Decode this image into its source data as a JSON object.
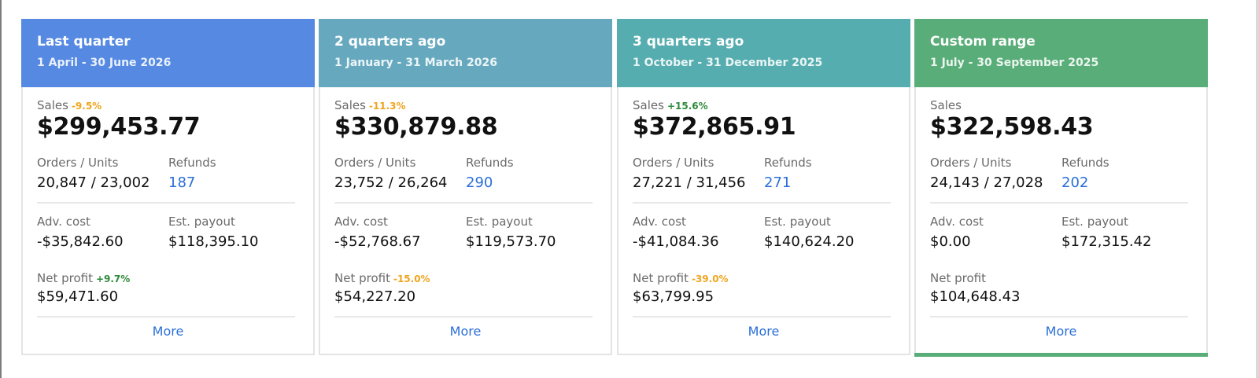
{
  "cards": [
    {
      "title": "Last quarter",
      "range": "1 April - 30 June 2026",
      "header_color": "#5589e2",
      "sales_label": "Sales",
      "sales_delta": "-9.5%",
      "sales_delta_color": "#efa51d",
      "sales_value": "$299,453.77",
      "orders_label": "Orders / Units",
      "orders_value": "20,847 / 23,002",
      "refunds_label": "Refunds",
      "refunds_value": "187",
      "adv_label": "Adv. cost",
      "adv_value": "-$35,842.60",
      "payout_label": "Est. payout",
      "payout_value": "$118,395.10",
      "net_label": "Net profit",
      "net_delta": "+9.7%",
      "net_delta_color": "#2e8a3a",
      "net_value": "$59,471.60",
      "more_label": "More"
    },
    {
      "title": "2 quarters ago",
      "range": "1 January - 31 March 2026",
      "header_color": "#66a9bf",
      "sales_label": "Sales",
      "sales_delta": "-11.3%",
      "sales_delta_color": "#efa51d",
      "sales_value": "$330,879.88",
      "orders_label": "Orders / Units",
      "orders_value": "23,752 / 26,264",
      "refunds_label": "Refunds",
      "refunds_value": "290",
      "adv_label": "Adv. cost",
      "adv_value": "-$52,768.67",
      "payout_label": "Est. payout",
      "payout_value": "$119,573.70",
      "net_label": "Net profit",
      "net_delta": "-15.0%",
      "net_delta_color": "#efa51d",
      "net_value": "$54,227.20",
      "more_label": "More"
    },
    {
      "title": "3 quarters ago",
      "range": "1 October - 31 December 2025",
      "header_color": "#56adaf",
      "sales_label": "Sales",
      "sales_delta": "+15.6%",
      "sales_delta_color": "#2e8a3a",
      "sales_value": "$372,865.91",
      "orders_label": "Orders / Units",
      "orders_value": "27,221 / 31,456",
      "refunds_label": "Refunds",
      "refunds_value": "271",
      "adv_label": "Adv. cost",
      "adv_value": "-$41,084.36",
      "payout_label": "Est. payout",
      "payout_value": "$140,624.20",
      "net_label": "Net profit",
      "net_delta": "-39.0%",
      "net_delta_color": "#efa51d",
      "net_value": "$63,799.95",
      "more_label": "More"
    },
    {
      "title": "Custom range",
      "range": "1 July - 30 September 2025",
      "header_color": "#59ad78",
      "sales_label": "Sales",
      "sales_delta": "",
      "sales_delta_color": "#2e8a3a",
      "sales_value": "$322,598.43",
      "orders_label": "Orders / Units",
      "orders_value": "24,143 / 27,028",
      "refunds_label": "Refunds",
      "refunds_value": "202",
      "adv_label": "Adv. cost",
      "adv_value": "$0.00",
      "payout_label": "Est. payout",
      "payout_value": "$172,315.42",
      "net_label": "Net profit",
      "net_delta": "",
      "net_delta_color": "#2e8a3a",
      "net_value": "$104,648.43",
      "more_label": "More",
      "active": true
    }
  ]
}
